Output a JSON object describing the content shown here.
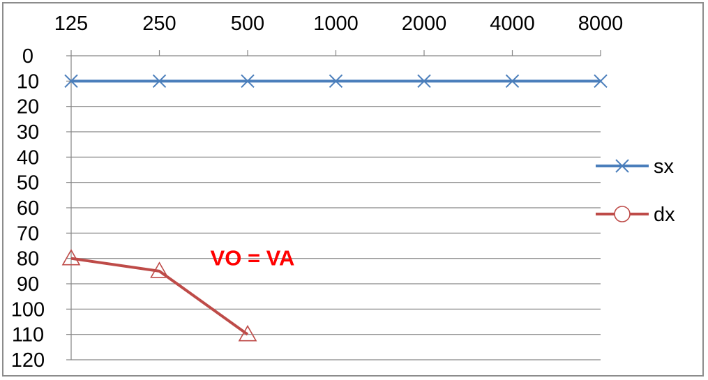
{
  "chart_data": {
    "type": "line",
    "title": "",
    "xlabel": "",
    "ylabel": "",
    "x_axis_position": "top",
    "x_scale": "categorical",
    "categories": [
      "125",
      "250",
      "500",
      "1000",
      "2000",
      "4000",
      "8000"
    ],
    "y_axis_inverted": true,
    "ylim": [
      0,
      120
    ],
    "y_ticks": [
      0,
      10,
      20,
      30,
      40,
      50,
      60,
      70,
      80,
      90,
      100,
      110,
      120
    ],
    "grid": "horizontal",
    "legend_position": "right",
    "series": [
      {
        "name": "sx",
        "color": "#4a7ebb",
        "marker": "x",
        "values": [
          10,
          10,
          10,
          10,
          10,
          10,
          10
        ]
      },
      {
        "name": "dx",
        "color": "#be4b48",
        "marker": "triangle",
        "legend_marker": "circle",
        "values": [
          80,
          85,
          110,
          null,
          null,
          null,
          null
        ]
      }
    ],
    "annotations": [
      {
        "text": "VO = VA",
        "color": "#ff0000",
        "x_category": "500",
        "y": 80
      }
    ]
  }
}
